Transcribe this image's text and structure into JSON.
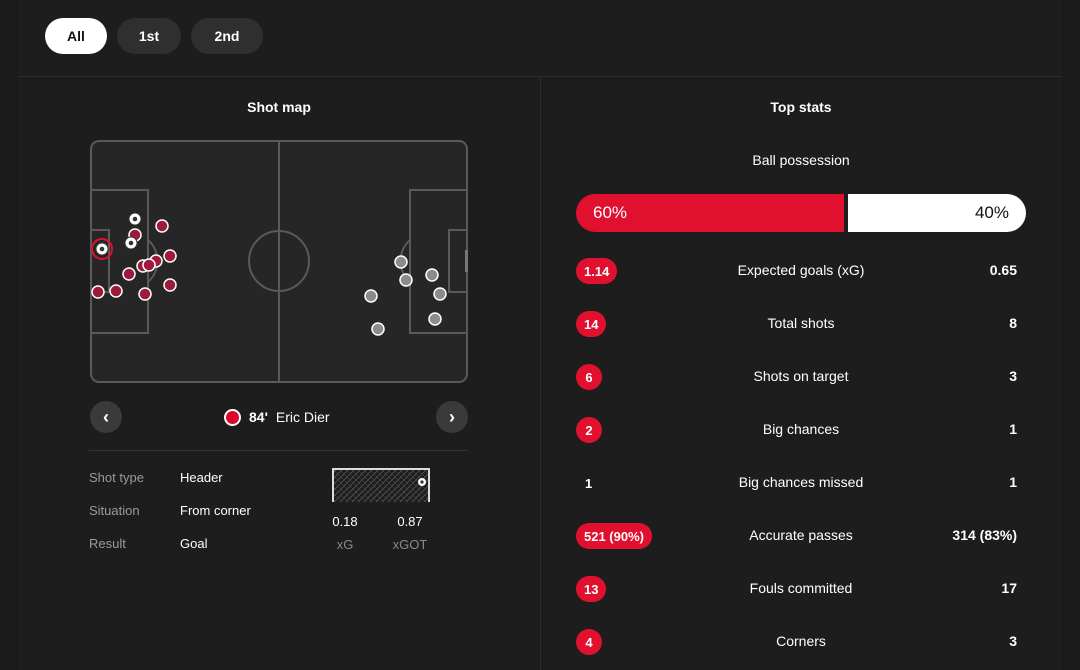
{
  "period_tabs": [
    {
      "label": "All",
      "active": true
    },
    {
      "label": "1st",
      "active": false
    },
    {
      "label": "2nd",
      "active": false
    }
  ],
  "shot_map": {
    "title": "Shot map",
    "selected_shot": {
      "minute": "84'",
      "player": "Eric Dier",
      "team_logo": "bayern-munich-badge",
      "details": [
        {
          "label": "Shot type",
          "value": "Header"
        },
        {
          "label": "Situation",
          "value": "From corner"
        },
        {
          "label": "Result",
          "value": "Goal"
        }
      ],
      "xg": "0.18",
      "xg_label": "xG",
      "xgot": "0.87",
      "xgot_label": "xGOT"
    },
    "icons": {
      "prev": "chevron-left-icon",
      "next": "chevron-right-icon",
      "goal": "soccer-ball-icon"
    },
    "colors": {
      "home": "#9e1a3c",
      "away": "#8c8c8c",
      "goal": "#ffffff",
      "pitch": "#262626",
      "line": "#5a5a5a"
    }
  },
  "top_stats": {
    "title": "Top stats",
    "possession": {
      "label": "Ball possession",
      "home": "60%",
      "away": "40%",
      "home_fraction": 0.6
    },
    "rows": [
      {
        "label": "Expected goals (xG)",
        "home": "1.14",
        "away": "0.65",
        "home_highlight": true
      },
      {
        "label": "Total shots",
        "home": "14",
        "away": "8",
        "home_highlight": true
      },
      {
        "label": "Shots on target",
        "home": "6",
        "away": "3",
        "home_highlight": true
      },
      {
        "label": "Big chances",
        "home": "2",
        "away": "1",
        "home_highlight": true
      },
      {
        "label": "Big chances missed",
        "home": "1",
        "away": "1",
        "home_highlight": false
      },
      {
        "label": "Accurate passes",
        "home": "521 (90%)",
        "away": "314 (83%)",
        "home_highlight": true
      },
      {
        "label": "Fouls committed",
        "home": "13",
        "away": "17",
        "home_highlight": true
      },
      {
        "label": "Corners",
        "home": "4",
        "away": "3",
        "home_highlight": true
      }
    ],
    "colors": {
      "accent": "#e2102f"
    }
  }
}
